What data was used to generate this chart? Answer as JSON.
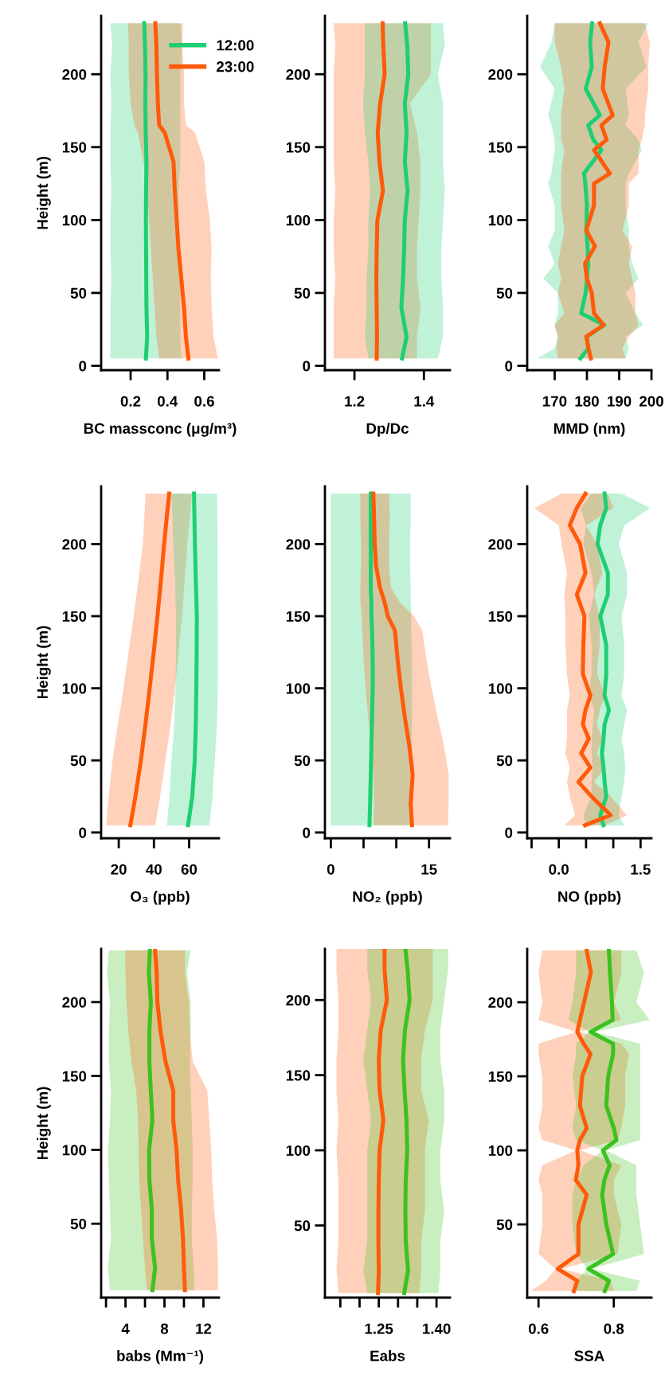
{
  "chart_data": [
    {
      "type": "line",
      "orientation": "horizontal",
      "xlabel": "BC massconc (μg/m³)",
      "ylabel": "Height (m)",
      "xlim": [
        0.04,
        0.68
      ],
      "xticks": [
        {
          "value": 0.2,
          "label": "0.2"
        },
        {
          "value": 0.4,
          "label": "0.4"
        },
        {
          "value": 0.6,
          "label": "0.6"
        }
      ],
      "ylim": [
        -3,
        240
      ],
      "yticks": [
        0,
        50,
        100,
        150,
        200
      ],
      "legend": "top right",
      "series": [
        {
          "name": "12:00",
          "color": "#1ecf72",
          "x": [
            5,
            20,
            40,
            60,
            80,
            100,
            120,
            140,
            160,
            180,
            200,
            220,
            235
          ],
          "values": [
            0.283,
            0.29,
            0.286,
            0.285,
            0.284,
            0.283,
            0.284,
            0.286,
            0.282,
            0.28,
            0.281,
            0.278,
            0.274
          ],
          "lower": [
            0.09,
            0.09,
            0.09,
            0.095,
            0.09,
            0.09,
            0.095,
            0.09,
            0.09,
            0.095,
            0.09,
            0.1,
            0.09
          ],
          "upper": [
            0.476,
            0.47,
            0.47,
            0.47,
            0.46,
            0.46,
            0.46,
            0.47,
            0.47,
            0.47,
            0.47,
            0.48,
            0.47
          ]
        },
        {
          "name": "23:00",
          "color": "#ff5a0a",
          "x": [
            5,
            20,
            40,
            60,
            80,
            100,
            120,
            140,
            160,
            165,
            180,
            200,
            220,
            235
          ],
          "values": [
            0.514,
            0.5,
            0.49,
            0.475,
            0.46,
            0.45,
            0.44,
            0.433,
            0.385,
            0.355,
            0.348,
            0.343,
            0.34,
            0.334
          ],
          "lower": [
            0.355,
            0.34,
            0.33,
            0.32,
            0.31,
            0.3,
            0.29,
            0.27,
            0.24,
            0.22,
            0.2,
            0.19,
            0.19,
            0.186
          ],
          "upper": [
            0.674,
            0.65,
            0.64,
            0.635,
            0.64,
            0.63,
            0.61,
            0.6,
            0.55,
            0.5,
            0.49,
            0.49,
            0.48,
            0.484
          ]
        }
      ]
    },
    {
      "type": "line",
      "orientation": "horizontal",
      "xlabel": "Dp/Dc",
      "xlim": [
        1.115,
        1.475
      ],
      "xticks": [
        1.2,
        1.4
      ],
      "ylim": [
        -3,
        240
      ],
      "yticks": [
        0,
        50,
        100,
        150,
        200
      ],
      "series": [
        {
          "color": "#ff5a0a",
          "x": [
            5,
            20,
            40,
            60,
            80,
            100,
            120,
            140,
            160,
            180,
            200,
            220,
            235
          ],
          "values": [
            1.264,
            1.265,
            1.264,
            1.263,
            1.264,
            1.266,
            1.282,
            1.272,
            1.267,
            1.274,
            1.287,
            1.283,
            1.281
          ],
          "lower": [
            1.14,
            1.14,
            1.14,
            1.145,
            1.14,
            1.14,
            1.145,
            1.14,
            1.14,
            1.14,
            1.14,
            1.145,
            1.14
          ],
          "upper": [
            1.38,
            1.38,
            1.39,
            1.38,
            1.38,
            1.385,
            1.39,
            1.39,
            1.38,
            1.36,
            1.42,
            1.42,
            1.42
          ]
        },
        {
          "color": "#1ecf72",
          "x": [
            5,
            20,
            40,
            60,
            80,
            100,
            120,
            140,
            160,
            180,
            200,
            220,
            235
          ],
          "values": [
            1.337,
            1.35,
            1.335,
            1.34,
            1.343,
            1.345,
            1.353,
            1.345,
            1.35,
            1.345,
            1.355,
            1.352,
            1.346
          ],
          "lower": [
            1.24,
            1.23,
            1.235,
            1.235,
            1.24,
            1.24,
            1.245,
            1.24,
            1.23,
            1.225,
            1.23,
            1.23,
            1.23
          ],
          "upper": [
            1.44,
            1.455,
            1.455,
            1.45,
            1.45,
            1.455,
            1.46,
            1.455,
            1.455,
            1.455,
            1.44,
            1.46,
            1.455
          ]
        }
      ]
    },
    {
      "type": "line",
      "orientation": "horizontal",
      "xlabel": "MMD (nm)",
      "xlim": [
        161.5,
        200
      ],
      "xticks": [
        170,
        180,
        190,
        200
      ],
      "ylim": [
        -3,
        240
      ],
      "yticks": [
        0,
        50,
        100,
        150,
        200
      ],
      "series": [
        {
          "color": "#1ecf72",
          "x": [
            5,
            12,
            20,
            28,
            36,
            50,
            60,
            70,
            82,
            93,
            110,
            125,
            132,
            148,
            155,
            165,
            172,
            190,
            205,
            222,
            235
          ],
          "values": [
            178,
            180.4,
            180,
            185.4,
            178.2,
            179.6,
            180,
            180.4,
            180.2,
            179.8,
            180,
            179.5,
            179.1,
            184.5,
            182,
            180.4,
            184,
            179.6,
            181.5,
            181,
            181.6
          ],
          "lower": [
            164.5,
            170,
            171,
            170,
            171,
            171,
            166.5,
            170,
            168,
            170,
            170,
            168,
            169,
            170,
            170,
            169,
            168,
            170,
            165.5,
            169,
            170
          ],
          "upper": [
            192,
            193,
            192,
            197.5,
            195,
            192,
            196,
            194,
            193,
            193,
            192,
            192,
            193,
            197,
            196,
            192,
            193,
            192,
            198.5,
            196,
            199
          ]
        },
        {
          "color": "#ff5a0a",
          "x": [
            5,
            12,
            20,
            28,
            36,
            50,
            60,
            70,
            82,
            93,
            110,
            125,
            132,
            148,
            155,
            165,
            172,
            190,
            205,
            222,
            235
          ],
          "values": [
            181.2,
            180.5,
            179.8,
            185.2,
            182.2,
            181.5,
            180,
            179.4,
            182.5,
            179.8,
            182.2,
            182.2,
            187.1,
            182.2,
            186.1,
            184.5,
            188,
            184.9,
            185.5,
            186.7,
            184
          ],
          "lower": [
            171,
            170.5,
            171,
            170,
            173,
            171,
            172,
            171,
            172,
            173,
            172,
            172,
            172,
            173,
            172,
            172,
            172,
            173,
            172,
            170,
            170
          ],
          "upper": [
            192,
            191,
            193,
            196,
            195,
            195,
            194,
            193,
            194,
            191,
            193,
            193,
            196,
            196,
            197,
            198,
            198,
            199,
            199,
            199.5,
            198
          ]
        }
      ]
    },
    {
      "type": "line",
      "orientation": "horizontal",
      "xlabel": "O₃ (ppb)",
      "ylabel": "Height (m)",
      "xlim": [
        10,
        77
      ],
      "xticks": [
        20,
        40,
        60
      ],
      "ylim": [
        -4,
        240
      ],
      "yticks": [
        0,
        50,
        100,
        150,
        200
      ],
      "series": [
        {
          "color": "#ff5a0a",
          "x": [
            5,
            25,
            50,
            75,
            100,
            125,
            150,
            175,
            200,
            220,
            235
          ],
          "values": [
            26.6,
            29.5,
            32.6,
            35.2,
            37.6,
            39.9,
            42,
            44,
            45.8,
            47.4,
            48.7
          ],
          "lower": [
            12.8,
            14.3,
            16.4,
            19.5,
            22.7,
            25.6,
            28.5,
            31.2,
            33.7,
            34.6,
            35.3
          ],
          "upper": [
            40.8,
            43.5,
            46.5,
            49.5,
            52,
            54,
            56,
            57.5,
            59,
            60.5,
            61.5
          ]
        },
        {
          "color": "#1ecf72",
          "x": [
            5,
            25,
            50,
            75,
            100,
            125,
            150,
            175,
            200,
            220,
            235
          ],
          "values": [
            59.4,
            61.8,
            63.2,
            63.8,
            64.1,
            64.3,
            64.4,
            63.8,
            63.3,
            63,
            62.8
          ],
          "lower": [
            47.4,
            48.8,
            50,
            51.5,
            52.3,
            52.5,
            52.5,
            52,
            51,
            50.5,
            50
          ],
          "upper": [
            71.5,
            73.3,
            74.6,
            75.8,
            76.3,
            76.4,
            76.4,
            76.2,
            76.2,
            76,
            75.9
          ]
        }
      ]
    },
    {
      "type": "line",
      "orientation": "horizontal",
      "xlabel": "NO₂ (ppb)",
      "xlim": [
        -0.9,
        18.2
      ],
      "xticks": [
        0,
        {
          "value": 5,
          "label": null
        },
        {
          "value": 10,
          "label": null
        },
        15
      ],
      "ylim": [
        -4,
        240
      ],
      "yticks": [
        0,
        50,
        100,
        150,
        200
      ],
      "series": [
        {
          "color": "#1ecf72",
          "x": [
            5,
            20,
            40,
            60,
            80,
            100,
            120,
            140,
            150,
            160,
            170,
            185,
            200,
            220,
            235
          ],
          "values": [
            5.9,
            6,
            6.1,
            6.2,
            6.3,
            6.4,
            6.4,
            6.3,
            6.2,
            6.2,
            6.1,
            6.1,
            6.1,
            6.1,
            6.1
          ],
          "lower": [
            0,
            0,
            0,
            0,
            0,
            0,
            0,
            0,
            0,
            0,
            0,
            0,
            0,
            0,
            0
          ],
          "upper": [
            12.2,
            12.2,
            12.3,
            12.3,
            12.4,
            12.4,
            12.4,
            12.3,
            12.3,
            12.2,
            12.2,
            12.1,
            12.1,
            12.2,
            12.2
          ]
        },
        {
          "color": "#ff5a0a",
          "x": [
            5,
            20,
            40,
            60,
            80,
            100,
            120,
            140,
            150,
            160,
            170,
            185,
            200,
            220,
            235
          ],
          "values": [
            12.4,
            12.2,
            12.5,
            12,
            11.3,
            10.7,
            10.2,
            9.8,
            8.7,
            8.2,
            7.5,
            6.9,
            6.7,
            6.6,
            6.5
          ],
          "lower": [
            6.5,
            6.6,
            6.5,
            6.2,
            5.7,
            5.3,
            5,
            4.8,
            4.7,
            4.5,
            4.5,
            4.6,
            4.6,
            4.5,
            4.5
          ],
          "upper": [
            17.9,
            18,
            18,
            17.3,
            16.3,
            15.4,
            14.6,
            14,
            12.7,
            10.5,
            9.2,
            8.9,
            8.9,
            9,
            8.9
          ]
        }
      ]
    },
    {
      "type": "line",
      "orientation": "horizontal",
      "xlabel": "NO (ppb)",
      "xlim": [
        -0.58,
        1.7
      ],
      "xticks": [
        {
          "value": -0.5,
          "label": null
        },
        {
          "value": 0,
          "label": "0.0"
        },
        {
          "value": 0.5,
          "label": null
        },
        {
          "value": 1,
          "label": null
        },
        1.5
      ],
      "ylim": [
        -4,
        240
      ],
      "yticks": [
        0,
        50,
        100,
        150,
        200
      ],
      "series": [
        {
          "color": "#1ecf72",
          "x": [
            5,
            12,
            25,
            35,
            45,
            55,
            65,
            75,
            85,
            95,
            110,
            130,
            150,
            165,
            180,
            200,
            213,
            225,
            235
          ],
          "values": [
            0.82,
            0.76,
            0.87,
            0.84,
            0.82,
            0.79,
            0.82,
            0.84,
            0.92,
            0.84,
            0.87,
            0.87,
            0.76,
            0.9,
            0.9,
            0.71,
            0.76,
            0.87,
            0.84
          ],
          "lower": [
            0.5,
            0.45,
            0.6,
            0.6,
            0.62,
            0.6,
            0.6,
            0.62,
            0.65,
            0.55,
            0.6,
            0.6,
            0.55,
            0.65,
            0.6,
            0.45,
            0.5,
            0.4,
            0.6
          ],
          "upper": [
            1.2,
            1.1,
            1.15,
            1.2,
            1.22,
            1.2,
            1.15,
            1.2,
            1.25,
            1.15,
            1.2,
            1.2,
            1.15,
            1.25,
            1.25,
            1.1,
            1.2,
            1.68,
            1.15
          ]
        },
        {
          "color": "#ff5a0a",
          "x": [
            5,
            12,
            25,
            35,
            45,
            55,
            65,
            75,
            85,
            95,
            110,
            130,
            150,
            165,
            180,
            200,
            213,
            225,
            235
          ],
          "values": [
            0.48,
            0.95,
            0.6,
            0.36,
            0.58,
            0.41,
            0.55,
            0.44,
            0.49,
            0.58,
            0.44,
            0.45,
            0.47,
            0.33,
            0.49,
            0.39,
            0.2,
            0.33,
            0.49
          ],
          "lower": [
            0.1,
            0.3,
            0.2,
            0.15,
            0.2,
            0.12,
            0.15,
            0.15,
            0.15,
            0.2,
            0.15,
            0.12,
            0.12,
            0.1,
            0.15,
            0.05,
            0,
            -0.45,
            0.05
          ],
          "upper": [
            0.85,
            1.25,
            0.95,
            0.65,
            0.85,
            0.7,
            0.8,
            0.7,
            0.75,
            0.85,
            0.7,
            0.75,
            0.75,
            0.65,
            0.8,
            0.7,
            0.5,
            1.0,
            0.9
          ]
        }
      ]
    },
    {
      "type": "line",
      "orientation": "horizontal",
      "xlabel": "babs (Mm⁻¹)",
      "ylabel": "Height (m)",
      "xlim": [
        1.5,
        13.6
      ],
      "xticks": [
        {
          "value": 2,
          "label": null
        },
        4,
        {
          "value": 6,
          "label": null
        },
        8,
        {
          "value": 10,
          "label": null
        },
        12
      ],
      "ylim": [
        0,
        236
      ],
      "yticks": [
        50,
        100,
        150,
        200
      ],
      "series": [
        {
          "color": "#3cc21e",
          "x": [
            5,
            20,
            40,
            60,
            80,
            100,
            120,
            140,
            160,
            180,
            200,
            220,
            235
          ],
          "values": [
            6.76,
            7.04,
            6.7,
            6.7,
            6.45,
            6.42,
            6.76,
            6.6,
            6.45,
            6.45,
            6.6,
            6.4,
            6.5
          ],
          "lower": [
            2.4,
            2.2,
            2.5,
            2.4,
            2.3,
            2.2,
            2.4,
            2.5,
            2.3,
            2.3,
            2.4,
            2.1,
            2.3
          ],
          "upper": [
            11.1,
            11,
            10.8,
            10.8,
            10.9,
            10.9,
            10.8,
            10.7,
            10.6,
            10.7,
            10.7,
            10.3,
            10.7
          ]
        },
        {
          "color": "#ff5a0a",
          "x": [
            5,
            20,
            40,
            60,
            80,
            100,
            120,
            140,
            160,
            180,
            200,
            220,
            235
          ],
          "values": [
            10.1,
            10,
            9.9,
            9.7,
            9.4,
            9.24,
            8.9,
            8.9,
            8.1,
            7.6,
            7.27,
            7.2,
            7.04
          ],
          "lower": [
            6.2,
            6,
            5.8,
            5.6,
            5.4,
            5.35,
            5.3,
            5.1,
            4.6,
            4.3,
            4.1,
            4,
            4
          ],
          "upper": [
            13.5,
            13.5,
            13.4,
            13.1,
            12.9,
            12.8,
            12.6,
            12.4,
            10.9,
            10.6,
            10.5,
            10.1,
            10.1
          ]
        }
      ]
    },
    {
      "type": "line",
      "orientation": "horizontal",
      "xlabel": "Eabs",
      "xlim": [
        1.11,
        1.435
      ],
      "xticks": [
        {
          "value": 1.15,
          "label": null
        },
        {
          "value": 1.2,
          "label": null
        },
        {
          "value": 1.25,
          "label": "1.25"
        },
        {
          "value": 1.3,
          "label": null
        },
        {
          "value": 1.35,
          "label": null
        },
        {
          "value": 1.4,
          "label": "1.40"
        }
      ],
      "ylim": [
        2,
        234
      ],
      "yticks": [
        50,
        100,
        150,
        200
      ],
      "series": [
        {
          "color": "#ff5a0a",
          "x": [
            5,
            20,
            40,
            60,
            80,
            100,
            120,
            140,
            160,
            180,
            200,
            220,
            234
          ],
          "values": [
            1.248,
            1.25,
            1.249,
            1.249,
            1.25,
            1.252,
            1.262,
            1.252,
            1.25,
            1.255,
            1.271,
            1.265,
            1.265
          ],
          "lower": [
            1.145,
            1.14,
            1.145,
            1.145,
            1.145,
            1.14,
            1.145,
            1.14,
            1.14,
            1.145,
            1.145,
            1.14,
            1.14
          ],
          "upper": [
            1.355,
            1.36,
            1.36,
            1.37,
            1.37,
            1.37,
            1.38,
            1.36,
            1.36,
            1.37,
            1.39,
            1.39,
            1.39
          ]
        },
        {
          "color": "#3cc21e",
          "x": [
            5,
            20,
            40,
            60,
            80,
            100,
            120,
            140,
            160,
            180,
            200,
            220,
            234
          ],
          "values": [
            1.316,
            1.326,
            1.32,
            1.319,
            1.32,
            1.324,
            1.322,
            1.317,
            1.313,
            1.318,
            1.33,
            1.325,
            1.319
          ],
          "lower": [
            1.22,
            1.21,
            1.22,
            1.22,
            1.22,
            1.22,
            1.23,
            1.22,
            1.21,
            1.22,
            1.23,
            1.22,
            1.22
          ],
          "upper": [
            1.405,
            1.41,
            1.41,
            1.42,
            1.41,
            1.41,
            1.42,
            1.42,
            1.41,
            1.41,
            1.42,
            1.43,
            1.43
          ]
        }
      ]
    },
    {
      "type": "line",
      "orientation": "horizontal",
      "xlabel": "SSA",
      "xlim": [
        0.57,
        0.9
      ],
      "xticks": [
        0.6,
        0.8
      ],
      "ylim": [
        0.6,
        236
      ],
      "yticks": [
        50,
        100,
        150,
        200
      ],
      "series": [
        {
          "color": "#ff5a0a",
          "x": [
            5,
            12,
            20,
            30,
            50,
            70,
            80,
            90,
            100,
            107,
            115,
            130,
            150,
            165,
            172,
            180,
            188,
            200,
            220,
            235
          ],
          "values": [
            0.694,
            0.703,
            0.651,
            0.706,
            0.706,
            0.728,
            0.699,
            0.706,
            0.703,
            0.71,
            0.728,
            0.71,
            0.716,
            0.738,
            0.72,
            0.703,
            0.71,
            0.721,
            0.739,
            0.728
          ],
          "lower": [
            0.58,
            0.62,
            0.645,
            0.6,
            0.61,
            0.61,
            0.6,
            0.61,
            0.7,
            0.61,
            0.6,
            0.61,
            0.61,
            0.6,
            0.6,
            0.7,
            0.6,
            0.61,
            0.6,
            0.61
          ],
          "upper": [
            0.8,
            0.79,
            0.66,
            0.81,
            0.82,
            0.8,
            0.8,
            0.82,
            0.71,
            0.81,
            0.82,
            0.83,
            0.83,
            0.84,
            0.82,
            0.71,
            0.82,
            0.8,
            0.82,
            0.82
          ]
        },
        {
          "color": "#3cc21e",
          "x": [
            5,
            12,
            20,
            30,
            50,
            70,
            80,
            90,
            100,
            107,
            115,
            130,
            150,
            165,
            172,
            180,
            188,
            200,
            220,
            235
          ],
          "values": [
            0.776,
            0.787,
            0.732,
            0.798,
            0.78,
            0.769,
            0.775,
            0.789,
            0.771,
            0.807,
            0.8,
            0.78,
            0.785,
            0.798,
            0.798,
            0.738,
            0.797,
            0.795,
            0.79,
            0.787
          ],
          "lower": [
            0.7,
            0.7,
            0.73,
            0.7,
            0.69,
            0.69,
            0.7,
            0.72,
            0.77,
            0.7,
            0.69,
            0.7,
            0.69,
            0.7,
            0.7,
            0.735,
            0.68,
            0.69,
            0.7,
            0.7
          ],
          "upper": [
            0.86,
            0.87,
            0.74,
            0.88,
            0.87,
            0.86,
            0.86,
            0.86,
            0.78,
            0.87,
            0.87,
            0.87,
            0.87,
            0.87,
            0.87,
            0.75,
            0.895,
            0.86,
            0.88,
            0.86
          ]
        }
      ]
    }
  ]
}
